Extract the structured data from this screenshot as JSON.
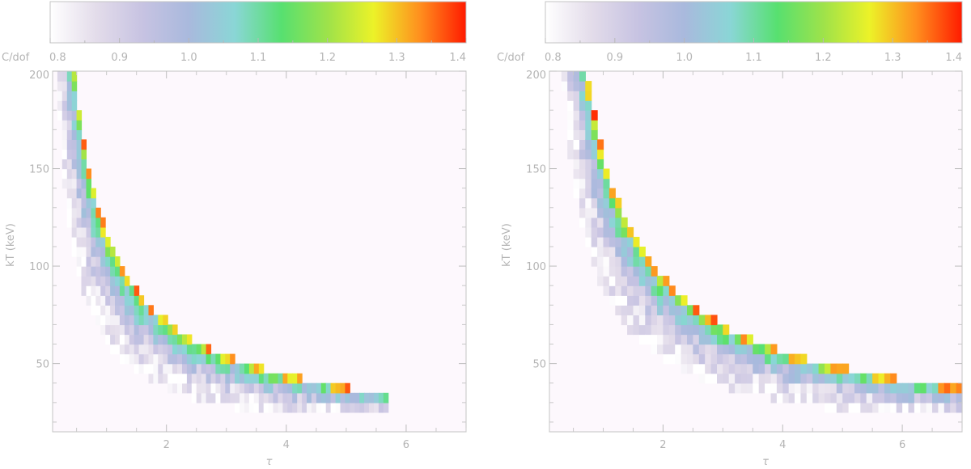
{
  "chart_data": [
    {
      "type": "heatmap",
      "panel": "left",
      "xlabel": "τ",
      "ylabel": "kT (keV)",
      "colorbar_label": "C/dof",
      "xlim": [
        0.1,
        7.0
      ],
      "ylim": [
        15,
        200
      ],
      "xticks": [
        2,
        4,
        6
      ],
      "yticks": [
        50,
        100,
        150,
        200
      ],
      "colorbar_range": [
        0.8,
        1.4
      ],
      "colorbar_ticks": [
        "0.8",
        "0.9",
        "1.0",
        "1.1",
        "1.2",
        "1.3",
        "1.4"
      ],
      "colormap": [
        "#ffffff",
        "#e3dcea",
        "#c7c3e2",
        "#a9b9dd",
        "#8ad6d6",
        "#57e070",
        "#9ee24a",
        "#ecf228",
        "#ff8f1e",
        "#ff1b00"
      ],
      "background_color": "#fdf8fd",
      "grid": false,
      "legend": "colorbar-top",
      "valley": {
        "kT_at_tau_1": 112,
        "exponent": 0.71,
        "width_low": 0.45,
        "width_high": 0.06,
        "tau_max": 5.7,
        "tau_step": 0.08,
        "kT_step": 5,
        "floor_kT": 28
      }
    },
    {
      "type": "heatmap",
      "panel": "right",
      "xlabel": "τ",
      "ylabel": "kT (keV)",
      "colorbar_label": "C/dof",
      "xlim": [
        0.1,
        7.0
      ],
      "ylim": [
        15,
        200
      ],
      "xticks": [
        2,
        4,
        6
      ],
      "yticks": [
        50,
        100,
        150,
        200
      ],
      "colorbar_range": [
        0.8,
        1.4
      ],
      "colorbar_ticks": [
        "0.8",
        "0.9",
        "1.0",
        "1.1",
        "1.2",
        "1.3",
        "1.4"
      ],
      "colormap": [
        "#ffffff",
        "#e3dcea",
        "#c7c3e2",
        "#a9b9dd",
        "#8ad6d6",
        "#57e070",
        "#9ee24a",
        "#ecf228",
        "#ff8f1e",
        "#ff1b00"
      ],
      "background_color": "#fdf8fd",
      "grid": false,
      "legend": "colorbar-top",
      "valley": {
        "kT_at_tau_1": 150,
        "exponent": 0.74,
        "width_low": 0.42,
        "width_high": 0.05,
        "tau_max": 7.0,
        "tau_step": 0.1,
        "kT_step": 5,
        "floor_kT": 28
      }
    }
  ]
}
